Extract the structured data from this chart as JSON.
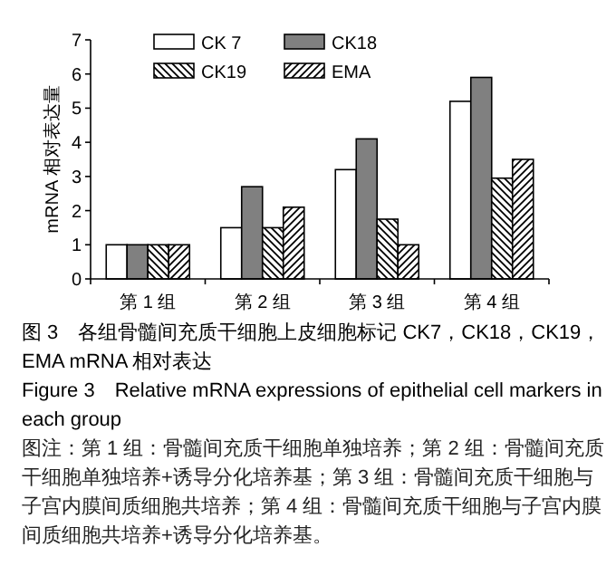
{
  "chart_data": {
    "type": "bar",
    "title": "图 3　各组骨髓间充质干细胞上皮细胞标记 CK7，CK18，CK19，EMA mRNA 相对表达",
    "subtitle": "Figure 3　Relative mRNA expressions of epithelial cell markers in each group",
    "annotations": [
      "图注：第 1 组：骨髓间充质干细胞单独培养；第 2 组：骨髓间充质干细胞单独培养+诱导分化培养基；第 3 组：骨髓间充质干细胞与子宫内膜间质细胞共培养；第 4 组：骨髓间充质干细胞与子宫内膜间质细胞共培养+诱导分化培养基。"
    ],
    "ylabel": "mRNA 相对表达量",
    "categories": [
      "第 1 组",
      "第 2 组",
      "第 3 组",
      "第 4 组"
    ],
    "series": [
      {
        "name": "CK 7",
        "color": "#ffffff",
        "values": [
          1,
          1.5,
          3.2,
          5.2
        ]
      },
      {
        "name": "CK18",
        "color": "#808080",
        "values": [
          1,
          2.7,
          4.1,
          5.9
        ]
      },
      {
        "name": "CK19",
        "color": "#000000",
        "values": [
          1,
          1.5,
          1.75,
          2.95
        ]
      },
      {
        "name": "EMA",
        "color": "#000000",
        "values": [
          1,
          2.1,
          1.0,
          3.5
        ]
      }
    ],
    "ylim": [
      0,
      7
    ],
    "yticks": [
      0,
      1,
      2,
      3,
      4,
      5,
      6,
      7
    ],
    "legend": "top",
    "grid": false
  }
}
